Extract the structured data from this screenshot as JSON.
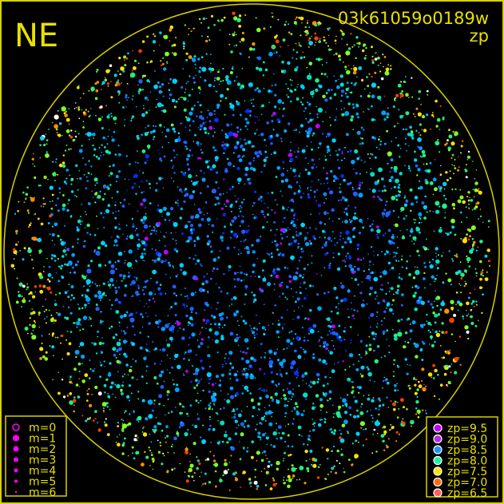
{
  "chart_data": {
    "type": "scatter",
    "title": "03k61059o0189w",
    "subtitle": "zp",
    "direction_label": "NE",
    "frame_color": "#d8d000",
    "horizon_circle_color": "#d8d000",
    "magnitude_legend": {
      "placement": "bottom-left",
      "color": "#ff00ff",
      "entries": [
        "m=0",
        "m=1",
        "m=2",
        "m=3",
        "m=4",
        "m=5",
        "m=6"
      ]
    },
    "zp_legend": {
      "placement": "bottom-right",
      "entries": [
        {
          "label": "zp=9.5",
          "color": "#c000ff"
        },
        {
          "label": "zp=9.0",
          "color": "#b030e0"
        },
        {
          "label": "zp=8.5",
          "color": "#2090ff"
        },
        {
          "label": "zp=8.0",
          "color": "#20f0a0"
        },
        {
          "label": "zp=7.5",
          "color": "#ffe000"
        },
        {
          "label": "zp=7.0",
          "color": "#ff6a00"
        },
        {
          "label": "zp=6.5",
          "color": "#ff6060"
        }
      ]
    },
    "star_colors": [
      "#0030ff",
      "#2060ff",
      "#00a0ff",
      "#00d0ff",
      "#00e0c0",
      "#20f080",
      "#80ff20",
      "#ffe000",
      "#ff9000",
      "#ff4000",
      "#c000ff",
      "#ffffff"
    ]
  }
}
